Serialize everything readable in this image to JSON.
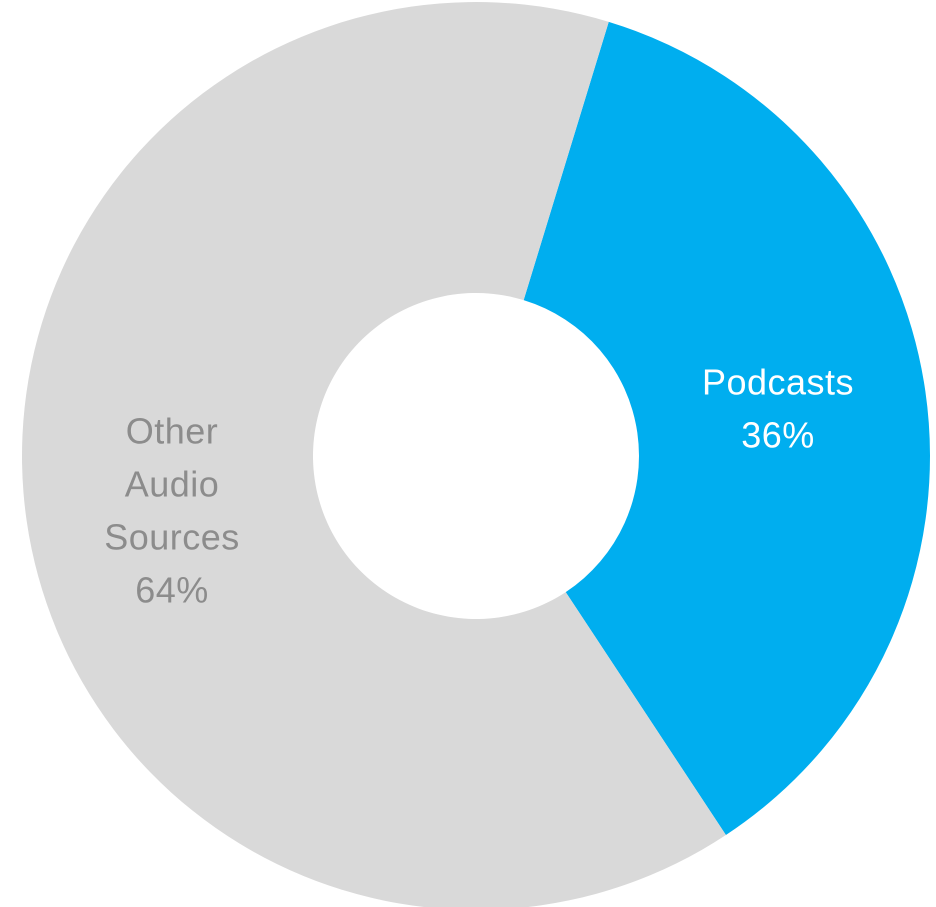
{
  "chart_data": {
    "type": "pie",
    "donut": true,
    "slices": [
      {
        "label_lines": [
          "Podcasts"
        ],
        "percent_text": "36%",
        "value": 36,
        "color": "#00AEEF",
        "label_color": "#FFFFFF"
      },
      {
        "label_lines": [
          "Other",
          "Audio",
          "Sources"
        ],
        "percent_text": "64%",
        "value": 64,
        "color": "#D9D9D9",
        "label_color": "#8C8C8C"
      }
    ],
    "start_angle_deg": 17,
    "direction": "clockwise",
    "legend": "none"
  }
}
